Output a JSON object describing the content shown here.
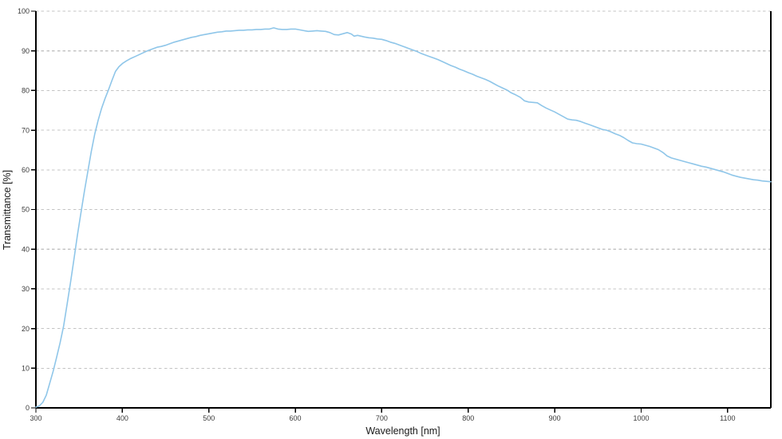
{
  "chart_data": {
    "type": "line",
    "title": "",
    "xlabel": "Wavelength [nm]",
    "ylabel": "Transmittance [%]",
    "xlim": [
      300,
      1150
    ],
    "ylim": [
      0,
      100
    ],
    "x_ticks": [
      300,
      400,
      500,
      600,
      700,
      800,
      900,
      1000,
      1100
    ],
    "y_ticks": [
      0,
      10,
      20,
      30,
      40,
      50,
      60,
      70,
      80,
      90,
      100
    ],
    "grid": "horizontal-dashed",
    "legend": "none",
    "colors": {
      "line": "#8fc6e9",
      "grid": "#c4c4c4",
      "axis": "#000000",
      "tick_text": "#3a3a3a",
      "title_text": "#1a1a1a",
      "background": "#ffffff"
    },
    "series": [
      {
        "name": "transmittance",
        "points": [
          [
            300,
            0.2
          ],
          [
            304,
            0.5
          ],
          [
            308,
            1.4
          ],
          [
            312,
            3.2
          ],
          [
            316,
            6.2
          ],
          [
            320,
            9.3
          ],
          [
            324,
            12.8
          ],
          [
            328,
            16.4
          ],
          [
            332,
            20.6
          ],
          [
            336,
            26
          ],
          [
            340,
            31.5
          ],
          [
            344,
            37.5
          ],
          [
            348,
            43.5
          ],
          [
            352,
            49
          ],
          [
            356,
            54.5
          ],
          [
            360,
            59.5
          ],
          [
            364,
            64.5
          ],
          [
            368,
            69
          ],
          [
            372,
            72.5
          ],
          [
            376,
            75.5
          ],
          [
            380,
            78
          ],
          [
            384,
            80.2
          ],
          [
            388,
            82.6
          ],
          [
            392,
            84.8
          ],
          [
            396,
            86
          ],
          [
            400,
            86.8
          ],
          [
            405,
            87.5
          ],
          [
            410,
            88.1
          ],
          [
            415,
            88.6
          ],
          [
            420,
            89.1
          ],
          [
            425,
            89.6
          ],
          [
            430,
            90.1
          ],
          [
            435,
            90.5
          ],
          [
            440,
            90.9
          ],
          [
            445,
            91.1
          ],
          [
            450,
            91.4
          ],
          [
            455,
            91.8
          ],
          [
            460,
            92.2
          ],
          [
            465,
            92.5
          ],
          [
            470,
            92.8
          ],
          [
            475,
            93.1
          ],
          [
            480,
            93.4
          ],
          [
            485,
            93.6
          ],
          [
            490,
            93.9
          ],
          [
            495,
            94.1
          ],
          [
            500,
            94.3
          ],
          [
            505,
            94.5
          ],
          [
            510,
            94.7
          ],
          [
            515,
            94.8
          ],
          [
            520,
            95
          ],
          [
            525,
            95
          ],
          [
            530,
            95.1
          ],
          [
            535,
            95.2
          ],
          [
            540,
            95.2
          ],
          [
            545,
            95.3
          ],
          [
            550,
            95.3
          ],
          [
            555,
            95.4
          ],
          [
            560,
            95.4
          ],
          [
            565,
            95.5
          ],
          [
            570,
            95.5
          ],
          [
            575,
            95.8
          ],
          [
            580,
            95.5
          ],
          [
            585,
            95.4
          ],
          [
            590,
            95.4
          ],
          [
            595,
            95.5
          ],
          [
            600,
            95.5
          ],
          [
            605,
            95.3
          ],
          [
            610,
            95.1
          ],
          [
            615,
            94.9
          ],
          [
            620,
            95
          ],
          [
            625,
            95.1
          ],
          [
            630,
            95
          ],
          [
            635,
            94.9
          ],
          [
            640,
            94.6
          ],
          [
            645,
            94.1
          ],
          [
            650,
            94
          ],
          [
            655,
            94.3
          ],
          [
            660,
            94.6
          ],
          [
            665,
            94.2
          ],
          [
            668,
            93.7
          ],
          [
            672,
            93.9
          ],
          [
            676,
            93.7
          ],
          [
            680,
            93.5
          ],
          [
            685,
            93.3
          ],
          [
            690,
            93.2
          ],
          [
            695,
            93
          ],
          [
            700,
            92.9
          ],
          [
            705,
            92.6
          ],
          [
            710,
            92.2
          ],
          [
            715,
            91.9
          ],
          [
            720,
            91.5
          ],
          [
            725,
            91.1
          ],
          [
            730,
            90.7
          ],
          [
            735,
            90.3
          ],
          [
            740,
            89.9
          ],
          [
            745,
            89.4
          ],
          [
            750,
            89
          ],
          [
            755,
            88.6
          ],
          [
            760,
            88.2
          ],
          [
            765,
            87.8
          ],
          [
            770,
            87.3
          ],
          [
            775,
            86.8
          ],
          [
            780,
            86.3
          ],
          [
            785,
            85.9
          ],
          [
            790,
            85.4
          ],
          [
            795,
            85
          ],
          [
            800,
            84.5
          ],
          [
            805,
            84.1
          ],
          [
            810,
            83.6
          ],
          [
            815,
            83.2
          ],
          [
            820,
            82.8
          ],
          [
            825,
            82.3
          ],
          [
            830,
            81.7
          ],
          [
            835,
            81.1
          ],
          [
            840,
            80.6
          ],
          [
            845,
            80.1
          ],
          [
            850,
            79.4
          ],
          [
            855,
            78.9
          ],
          [
            860,
            78.3
          ],
          [
            865,
            77.4
          ],
          [
            870,
            77.1
          ],
          [
            875,
            77
          ],
          [
            880,
            76.9
          ],
          [
            885,
            76.2
          ],
          [
            890,
            75.6
          ],
          [
            895,
            75.1
          ],
          [
            900,
            74.6
          ],
          [
            905,
            74
          ],
          [
            910,
            73.4
          ],
          [
            915,
            72.8
          ],
          [
            920,
            72.6
          ],
          [
            925,
            72.5
          ],
          [
            930,
            72.2
          ],
          [
            935,
            71.8
          ],
          [
            940,
            71.4
          ],
          [
            945,
            71
          ],
          [
            950,
            70.6
          ],
          [
            955,
            70.2
          ],
          [
            960,
            70
          ],
          [
            965,
            69.6
          ],
          [
            970,
            69.1
          ],
          [
            975,
            68.7
          ],
          [
            980,
            68.1
          ],
          [
            985,
            67.4
          ],
          [
            990,
            66.8
          ],
          [
            995,
            66.6
          ],
          [
            1000,
            66.5
          ],
          [
            1005,
            66.2
          ],
          [
            1010,
            65.9
          ],
          [
            1015,
            65.5
          ],
          [
            1020,
            65.1
          ],
          [
            1025,
            64.4
          ],
          [
            1030,
            63.5
          ],
          [
            1035,
            63
          ],
          [
            1040,
            62.7
          ],
          [
            1045,
            62.4
          ],
          [
            1050,
            62.1
          ],
          [
            1055,
            61.8
          ],
          [
            1060,
            61.5
          ],
          [
            1065,
            61.2
          ],
          [
            1070,
            60.9
          ],
          [
            1075,
            60.7
          ],
          [
            1080,
            60.4
          ],
          [
            1085,
            60.1
          ],
          [
            1090,
            59.8
          ],
          [
            1095,
            59.5
          ],
          [
            1100,
            59.1
          ],
          [
            1105,
            58.7
          ],
          [
            1110,
            58.4
          ],
          [
            1115,
            58.1
          ],
          [
            1120,
            57.9
          ],
          [
            1125,
            57.7
          ],
          [
            1130,
            57.5
          ],
          [
            1135,
            57.4
          ],
          [
            1140,
            57.2
          ],
          [
            1145,
            57.1
          ],
          [
            1150,
            57
          ]
        ]
      }
    ]
  }
}
